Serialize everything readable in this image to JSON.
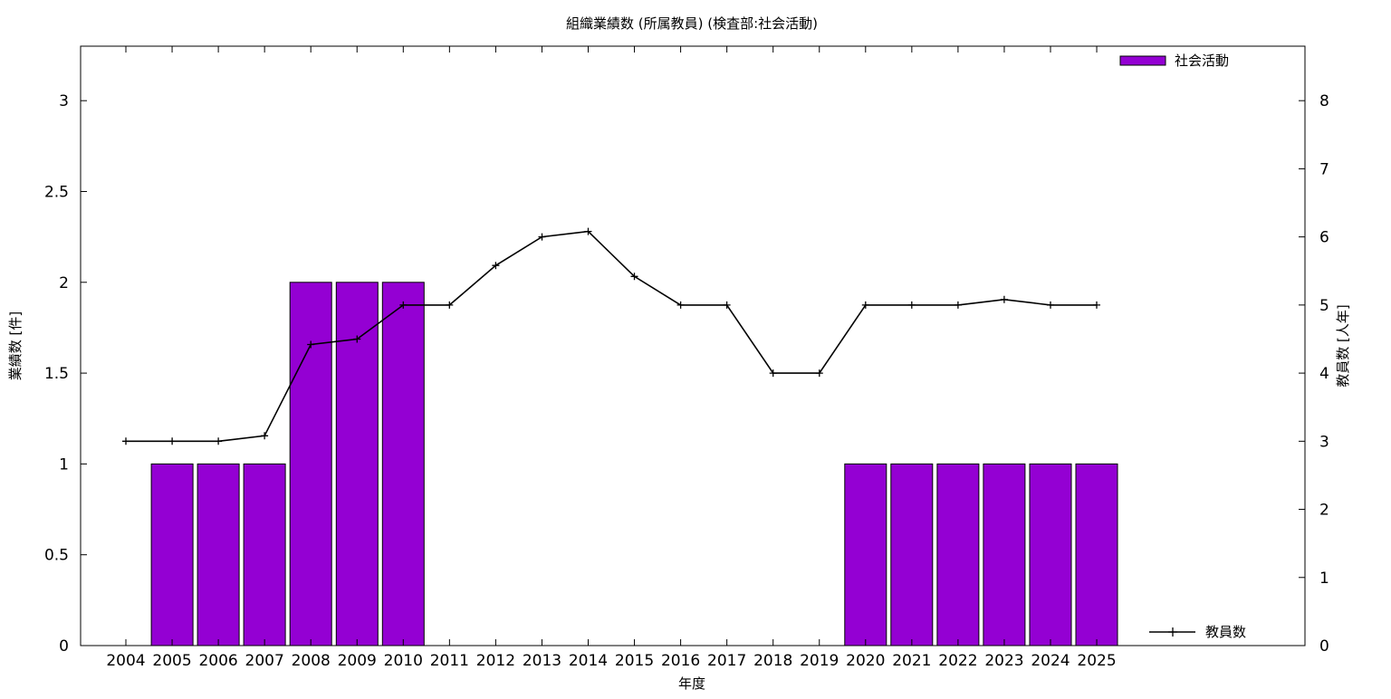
{
  "chart_data": {
    "type": "bar",
    "title": "組織業績数 (所属教員) (検査部:社会活動)",
    "xlabel": "年度",
    "ylabel": "業績数 [件]",
    "y2label": "教員数 [人年]",
    "categories": [
      "2004",
      "2005",
      "2006",
      "2007",
      "2008",
      "2009",
      "2010",
      "2011",
      "2012",
      "2013",
      "2014",
      "2015",
      "2016",
      "2017",
      "2018",
      "2019",
      "2020",
      "2021",
      "2022",
      "2023",
      "2024",
      "2025"
    ],
    "ylim": [
      0,
      3.3
    ],
    "yticks": [
      "0",
      "0.5",
      "1",
      "1.5",
      "2",
      "2.5",
      "3"
    ],
    "y2lim": [
      0,
      8.8
    ],
    "y2ticks": [
      "0",
      "1",
      "2",
      "3",
      "4",
      "5",
      "6",
      "7",
      "8"
    ],
    "grid": false,
    "series": [
      {
        "name": "社会活動",
        "type": "bar",
        "axis": "left",
        "color": "#9400d3",
        "values": [
          0,
          1,
          1,
          1,
          2,
          2,
          2,
          0,
          0,
          0,
          0,
          0,
          0,
          0,
          0,
          0,
          1,
          1,
          1,
          1,
          1,
          1
        ]
      },
      {
        "name": "教員数",
        "type": "line",
        "axis": "right",
        "color": "#000000",
        "values": [
          3,
          3,
          3,
          3.08,
          4.42,
          4.5,
          5,
          5,
          5.58,
          6,
          6.08,
          5.42,
          5,
          5,
          4,
          4,
          5,
          5,
          5,
          5.08,
          5,
          5
        ]
      }
    ],
    "legend": [
      {
        "label": "社会活動",
        "position": "top-right"
      },
      {
        "label": "教員数",
        "position": "bottom-right"
      }
    ]
  }
}
